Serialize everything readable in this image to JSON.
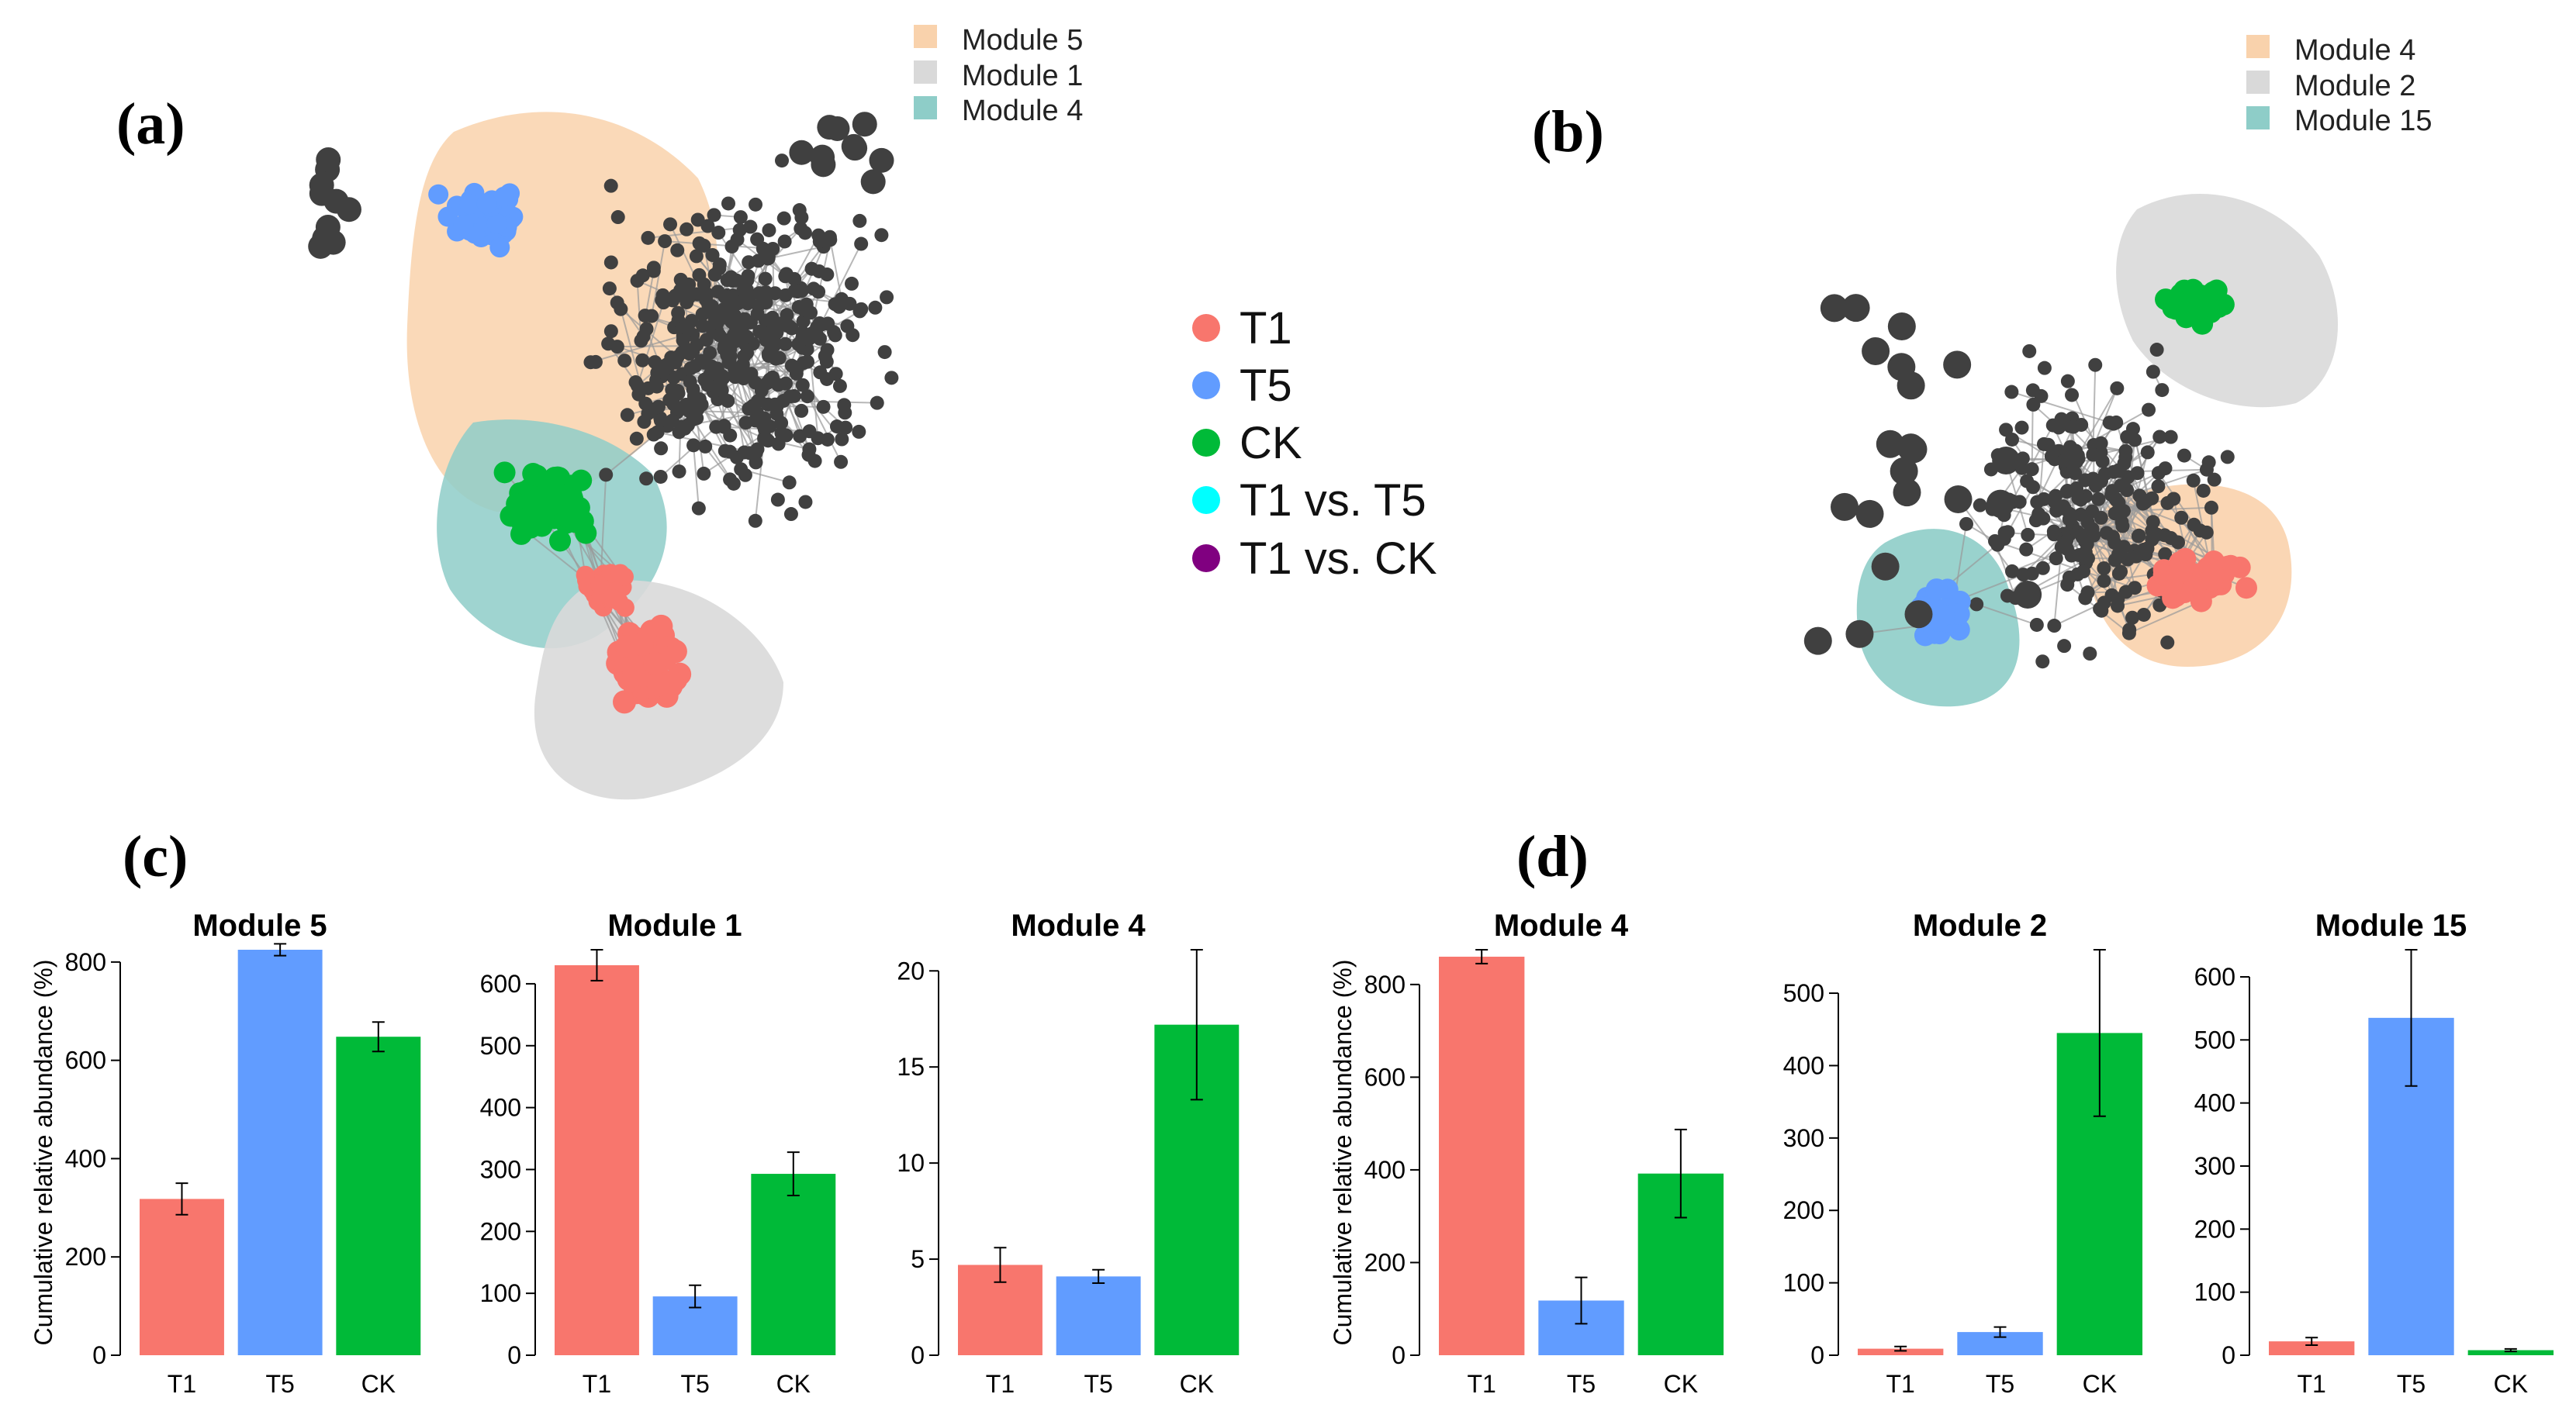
{
  "panels": {
    "a": "(a)",
    "b": "(b)",
    "c": "(c)",
    "d": "(d)"
  },
  "legend_a": {
    "items": [
      {
        "label": "Module 5",
        "color": "#f9d2ac"
      },
      {
        "label": "Module 1",
        "color": "#d9d9d9"
      },
      {
        "label": "Module 4",
        "color": "#8ecdc8"
      }
    ]
  },
  "legend_b": {
    "items": [
      {
        "label": "Module 4",
        "color": "#f9d2ac"
      },
      {
        "label": "Module 2",
        "color": "#d9d9d9"
      },
      {
        "label": "Module 15",
        "color": "#8ecdc8"
      }
    ]
  },
  "node_legend": {
    "items": [
      {
        "label": "T1",
        "color": "#f8766d"
      },
      {
        "label": "T5",
        "color": "#619cff"
      },
      {
        "label": "CK",
        "color": "#00ba38"
      },
      {
        "label": "T1 vs. T5",
        "color": "#00ffff"
      },
      {
        "label": "T1 vs. CK",
        "color": "#800080"
      }
    ]
  },
  "colors": {
    "node_default": "#404040",
    "edge": "#9a9a9a",
    "T1": "#f8766d",
    "T5": "#619cff",
    "CK": "#00ba38"
  },
  "ylabel": "Cumulative relative abundance (%)",
  "chart_data": [
    {
      "type": "bar",
      "panel": "c",
      "title": "Module 5",
      "categories": [
        "T1",
        "T5",
        "CK"
      ],
      "values": [
        318,
        825,
        648
      ],
      "errors": [
        32,
        12,
        30
      ],
      "ylim": [
        0,
        825
      ],
      "ticks": [
        0,
        200,
        400,
        600,
        800
      ],
      "ylabel": "Cumulative relative abundance (%)"
    },
    {
      "type": "bar",
      "panel": "c",
      "title": "Module 1",
      "categories": [
        "T1",
        "T5",
        "CK"
      ],
      "values": [
        630,
        95,
        293
      ],
      "errors": [
        25,
        18,
        35
      ],
      "ylim": [
        0,
        655
      ],
      "ticks": [
        0,
        100,
        200,
        300,
        400,
        500,
        600
      ],
      "ylabel": ""
    },
    {
      "type": "bar",
      "panel": "c",
      "title": "Module 4",
      "categories": [
        "T1",
        "T5",
        "CK"
      ],
      "values": [
        4.7,
        4.1,
        17.2
      ],
      "errors": [
        0.9,
        0.35,
        3.9
      ],
      "ylim": [
        0,
        21.1
      ],
      "ticks": [
        0,
        5,
        10,
        15,
        20
      ],
      "ylabel": ""
    },
    {
      "type": "bar",
      "panel": "d",
      "title": "Module 4",
      "categories": [
        "T1",
        "T5",
        "CK"
      ],
      "values": [
        860,
        118,
        392
      ],
      "errors": [
        15,
        50,
        95
      ],
      "ylim": [
        0,
        875
      ],
      "ticks": [
        0,
        200,
        400,
        600,
        800
      ],
      "ylabel": "Cumulative relative abundance (%)"
    },
    {
      "type": "bar",
      "panel": "d",
      "title": "Module 2",
      "categories": [
        "T1",
        "T5",
        "CK"
      ],
      "values": [
        9,
        32,
        445
      ],
      "errors": [
        3,
        7,
        115
      ],
      "ylim": [
        0,
        560
      ],
      "ticks": [
        0,
        100,
        200,
        300,
        400,
        500
      ],
      "ylabel": ""
    },
    {
      "type": "bar",
      "panel": "d",
      "title": "Module 15",
      "categories": [
        "T1",
        "T5",
        "CK"
      ],
      "values": [
        22,
        535,
        8
      ],
      "errors": [
        6,
        108,
        2
      ],
      "ylim": [
        0,
        643
      ],
      "ticks": [
        0,
        100,
        200,
        300,
        400,
        500,
        600
      ],
      "ylabel": ""
    }
  ]
}
